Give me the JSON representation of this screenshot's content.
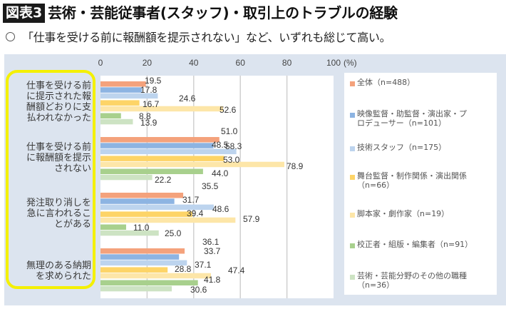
{
  "header": {
    "badge": "図表3",
    "title": "芸術・芸能従事者(スタッフ)・取引上のトラブルの経験",
    "subtitle": "「仕事を受ける前に報酬額を提示されない」など、いずれも総じて高い。"
  },
  "colors": {
    "panel_bg": "#dce4ef",
    "highlight_border": "#f4f000"
  },
  "chart_data": {
    "type": "bar",
    "orientation": "horizontal",
    "title": "芸術・芸能従事者(スタッフ)・取引上のトラブルの経験",
    "xlabel": "(%)",
    "ylabel": "",
    "xlim": [
      0,
      100
    ],
    "x_ticks": [
      "0",
      "20",
      "40",
      "60",
      "80",
      "100"
    ],
    "x_unit_label": "(%)",
    "grid": true,
    "legend_position": "right",
    "categories": [
      "仕事を受ける前に提示された報酬額どおりに支払われなかった",
      "仕事を受ける前に報酬額を提示されない",
      "発注取り消しを急に言われることがある",
      "無理のある納期を求められた"
    ],
    "category_lines": [
      [
        "仕事を受ける前",
        "に提示された報",
        "酬額どおりに支",
        "払われなかった"
      ],
      [
        "仕事を受ける前",
        "に報酬額を提示",
        "されない"
      ],
      [
        "発注取り消しを",
        "急に言われるこ",
        "とがある"
      ],
      [
        "無理のある納期",
        "を求められた"
      ]
    ],
    "series": [
      {
        "name": "全体（n=488）",
        "legend_lines": [
          "全体（n=488）"
        ],
        "color": "#f4a27c",
        "values": [
          19.5,
          51.0,
          35.5,
          36.1
        ]
      },
      {
        "name": "映像監督・助監督・演出家・プロデューサー（n=101）",
        "legend_lines": [
          "映像監督・助監督・演出家・プ",
          "ロデューサー（n=101）"
        ],
        "color": "#8db4e2",
        "values": [
          17.8,
          48.5,
          31.7,
          33.7
        ]
      },
      {
        "name": "技術スタッフ（n=175）",
        "legend_lines": [
          "技術スタッフ（n=175）"
        ],
        "color": "#bdd4ee",
        "values": [
          24.6,
          58.3,
          48.6,
          37.1
        ]
      },
      {
        "name": "舞台監督・制作関係・演出関係（n=66）",
        "legend_lines": [
          "舞台監督・制作関係・演出関係",
          "（n=66）"
        ],
        "color": "#fdd467",
        "values": [
          16.7,
          53.0,
          39.4,
          28.8
        ]
      },
      {
        "name": "脚本家・劇作家（n=19）",
        "legend_lines": [
          "脚本家・劇作家（n=19）"
        ],
        "color": "#fde6a8",
        "values": [
          52.6,
          78.9,
          57.9,
          47.4
        ]
      },
      {
        "name": "校正者・組版・編集者（n=91）",
        "legend_lines": [
          "校正者・組版・編集者（n=91）"
        ],
        "color": "#a8d08d",
        "values": [
          8.8,
          44.0,
          11.0,
          41.8
        ]
      },
      {
        "name": "芸術・芸能分野のその他の職種（n=36）",
        "legend_lines": [
          "芸術・芸能分野のその他の職種",
          "（n=36）"
        ],
        "color": "#cde3c3",
        "values": [
          13.9,
          22.2,
          25.0,
          30.6
        ]
      }
    ]
  }
}
